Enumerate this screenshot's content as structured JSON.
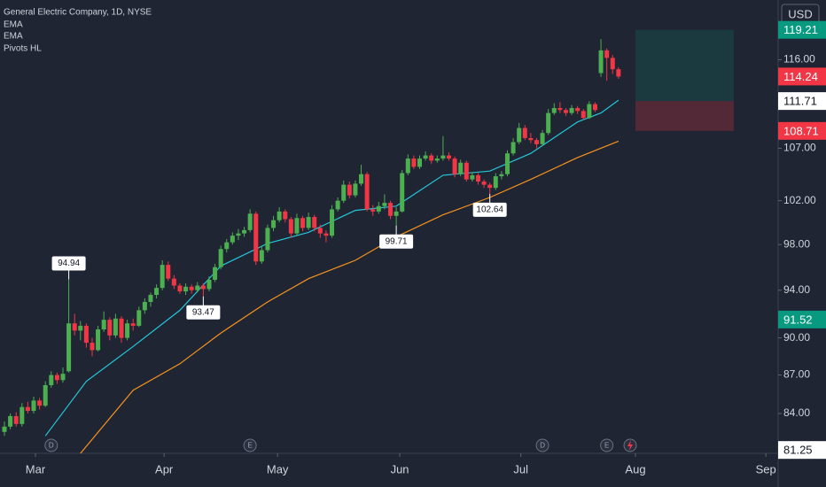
{
  "chart_data": {
    "type": "candlestick",
    "title": "General Electric Company, 1D, NYSE",
    "currency": "USD",
    "log_scale": true,
    "grid": false,
    "up_color": "#4caf50",
    "down_color": "#f23645",
    "ylim": [
      81.0,
      122.5
    ],
    "yticks": [
      {
        "value": 116,
        "label": "116.00"
      },
      {
        "value": 107,
        "label": "107.00"
      },
      {
        "value": 102,
        "label": "102.00"
      },
      {
        "value": 98,
        "label": "98.00"
      },
      {
        "value": 94,
        "label": "94.00"
      },
      {
        "value": 90,
        "label": "90.00"
      },
      {
        "value": 87,
        "label": "87.00"
      },
      {
        "value": 84,
        "label": "84.00"
      }
    ],
    "xlim": [
      -0.76,
      132.3
    ],
    "xticks": [
      {
        "value": 5.3,
        "label": "Mar"
      },
      {
        "value": 27.3,
        "label": "Apr"
      },
      {
        "value": 46.7,
        "label": "May"
      },
      {
        "value": 67.6,
        "label": "Jun"
      },
      {
        "value": 88.3,
        "label": "Jul"
      },
      {
        "value": 107.9,
        "label": "Aug"
      },
      {
        "value": 130.2,
        "label": "Sep"
      }
    ],
    "ohlc": [
      [
        82.6,
        83.4,
        82.3,
        83.0
      ],
      [
        83.0,
        84.0,
        82.8,
        83.8
      ],
      [
        83.8,
        84.1,
        83.0,
        83.2
      ],
      [
        83.2,
        84.8,
        83.0,
        84.5
      ],
      [
        84.5,
        84.9,
        84.0,
        84.2
      ],
      [
        84.2,
        85.3,
        84.0,
        85.0
      ],
      [
        85.0,
        85.2,
        84.3,
        84.6
      ],
      [
        84.6,
        86.5,
        84.5,
        86.2
      ],
      [
        86.2,
        87.3,
        86.0,
        87.0
      ],
      [
        87.0,
        87.2,
        86.3,
        86.6
      ],
      [
        86.6,
        87.6,
        86.4,
        87.1
      ],
      [
        87.3,
        94.94,
        87.2,
        91.2
      ],
      [
        91.2,
        92.0,
        90.2,
        90.6
      ],
      [
        90.6,
        91.4,
        89.8,
        91.0
      ],
      [
        91.0,
        91.2,
        89.2,
        89.6
      ],
      [
        89.6,
        90.0,
        88.5,
        89.0
      ],
      [
        89.0,
        91.0,
        88.9,
        90.7
      ],
      [
        90.7,
        92.2,
        90.5,
        91.5
      ],
      [
        91.5,
        91.7,
        89.8,
        90.2
      ],
      [
        90.2,
        92.0,
        90.0,
        91.6
      ],
      [
        91.6,
        91.8,
        89.6,
        90.0
      ],
      [
        90.0,
        91.5,
        89.8,
        91.2
      ],
      [
        91.2,
        91.6,
        90.6,
        91.0
      ],
      [
        91.0,
        92.6,
        90.9,
        92.3
      ],
      [
        92.3,
        93.3,
        92.0,
        93.0
      ],
      [
        93.0,
        93.8,
        92.6,
        93.6
      ],
      [
        93.6,
        94.5,
        93.3,
        94.2
      ],
      [
        94.2,
        96.6,
        94.0,
        96.2
      ],
      [
        96.2,
        96.5,
        94.8,
        95.0
      ],
      [
        95.0,
        95.3,
        94.1,
        94.4
      ],
      [
        94.4,
        94.6,
        93.7,
        93.9
      ],
      [
        93.9,
        94.6,
        93.6,
        94.3
      ],
      [
        94.3,
        94.5,
        93.7,
        94.0
      ],
      [
        94.0,
        94.7,
        93.8,
        94.4
      ],
      [
        94.4,
        94.6,
        93.47,
        94.1
      ],
      [
        94.1,
        95.2,
        93.9,
        94.9
      ],
      [
        94.9,
        96.3,
        94.7,
        96.0
      ],
      [
        96.0,
        97.9,
        95.8,
        97.6
      ],
      [
        97.6,
        98.5,
        97.3,
        98.2
      ],
      [
        98.2,
        99.1,
        98.0,
        98.8
      ],
      [
        98.8,
        99.4,
        98.4,
        99.0
      ],
      [
        99.0,
        99.6,
        98.7,
        99.3
      ],
      [
        99.3,
        101.2,
        99.1,
        100.8
      ],
      [
        100.8,
        101.0,
        96.2,
        96.5
      ],
      [
        96.5,
        97.9,
        96.3,
        97.5
      ],
      [
        97.5,
        99.8,
        97.3,
        99.5
      ],
      [
        99.5,
        100.6,
        99.2,
        100.2
      ],
      [
        100.2,
        101.4,
        100.0,
        101.0
      ],
      [
        101.0,
        101.2,
        100.0,
        100.3
      ],
      [
        100.3,
        100.5,
        98.6,
        99.0
      ],
      [
        99.0,
        100.8,
        98.8,
        100.4
      ],
      [
        100.4,
        100.6,
        99.2,
        99.5
      ],
      [
        99.5,
        100.9,
        99.3,
        100.5
      ],
      [
        100.5,
        100.7,
        99.2,
        99.5
      ],
      [
        99.5,
        99.8,
        98.6,
        99.0
      ],
      [
        99.0,
        99.3,
        98.2,
        98.8
      ],
      [
        98.8,
        101.6,
        98.6,
        101.2
      ],
      [
        101.2,
        102.3,
        101.0,
        102.0
      ],
      [
        102.0,
        103.9,
        101.8,
        103.5
      ],
      [
        103.5,
        103.8,
        102.2,
        102.5
      ],
      [
        102.5,
        103.9,
        102.3,
        103.6
      ],
      [
        103.6,
        105.4,
        103.4,
        104.5
      ],
      [
        104.5,
        104.7,
        101.0,
        101.2
      ],
      [
        101.2,
        101.6,
        100.6,
        101.0
      ],
      [
        101.0,
        101.9,
        100.8,
        101.5
      ],
      [
        101.5,
        102.6,
        101.2,
        101.8
      ],
      [
        101.8,
        102.0,
        100.3,
        100.6
      ],
      [
        100.6,
        101.4,
        99.71,
        101.0
      ],
      [
        101.0,
        104.9,
        100.9,
        104.6
      ],
      [
        104.6,
        106.4,
        104.4,
        106.0
      ],
      [
        106.0,
        106.3,
        105.0,
        105.2
      ],
      [
        105.2,
        106.3,
        105.0,
        106.0
      ],
      [
        106.0,
        106.7,
        105.8,
        106.3
      ],
      [
        106.3,
        106.5,
        105.5,
        105.8
      ],
      [
        105.8,
        106.3,
        105.6,
        106.0
      ],
      [
        106.0,
        108.2,
        105.8,
        106.3
      ],
      [
        106.3,
        106.6,
        105.8,
        106.0
      ],
      [
        106.0,
        106.2,
        104.2,
        104.5
      ],
      [
        104.5,
        105.9,
        104.3,
        105.6
      ],
      [
        105.6,
        105.8,
        103.8,
        104.0
      ],
      [
        104.0,
        104.7,
        103.8,
        104.4
      ],
      [
        104.4,
        104.6,
        103.5,
        103.8
      ],
      [
        103.8,
        104.0,
        103.2,
        103.5
      ],
      [
        103.5,
        103.7,
        102.64,
        103.2
      ],
      [
        103.2,
        104.6,
        103.0,
        104.3
      ],
      [
        104.3,
        104.8,
        104.0,
        104.5
      ],
      [
        104.5,
        106.8,
        104.3,
        106.5
      ],
      [
        106.5,
        108.0,
        106.3,
        107.6
      ],
      [
        107.6,
        109.5,
        107.4,
        109.0
      ],
      [
        109.0,
        109.3,
        107.8,
        108.0
      ],
      [
        108.0,
        108.5,
        107.5,
        107.8
      ],
      [
        107.8,
        108.0,
        107.0,
        107.4
      ],
      [
        107.4,
        108.8,
        107.2,
        108.5
      ],
      [
        108.5,
        110.9,
        108.3,
        110.5
      ],
      [
        110.5,
        111.5,
        110.3,
        111.0
      ],
      [
        111.0,
        111.6,
        110.5,
        110.8
      ],
      [
        110.8,
        111.0,
        110.2,
        110.5
      ],
      [
        110.5,
        111.3,
        110.3,
        111.0
      ],
      [
        111.0,
        111.2,
        110.4,
        110.7
      ],
      [
        110.7,
        110.9,
        109.8,
        110.0
      ],
      [
        110.0,
        111.7,
        109.9,
        111.4
      ],
      [
        111.4,
        111.6,
        110.6,
        110.8
      ],
      [
        114.6,
        118.2,
        114.2,
        117.0
      ],
      [
        117.0,
        117.2,
        113.8,
        116.2
      ],
      [
        116.2,
        116.5,
        114.5,
        115.0
      ],
      [
        115.0,
        115.2,
        114.0,
        114.24
      ]
    ],
    "series": [
      {
        "name": "EMA",
        "color": "#26c6da",
        "x": [
          7,
          14,
          22,
          30,
          37,
          45,
          52,
          60,
          67,
          75,
          83,
          90,
          98,
          102,
          105
        ],
        "values": [
          82.3,
          86.5,
          89.3,
          92.3,
          96.1,
          98.1,
          99.1,
          101.1,
          101.5,
          104.4,
          104.8,
          106.5,
          109.6,
          110.5,
          111.8
        ]
      },
      {
        "name": "EMA",
        "color": "#f7931e",
        "x": [
          13,
          22,
          30,
          37,
          45,
          52,
          60,
          67,
          75,
          83,
          90,
          98,
          105
        ],
        "values": [
          81.0,
          85.8,
          87.9,
          90.4,
          93.0,
          95.0,
          96.6,
          98.7,
          100.7,
          102.3,
          104.0,
          106.1,
          107.7
        ]
      }
    ],
    "pivots": {
      "name": "Pivots HL",
      "points": [
        {
          "x": 11,
          "value": 94.94,
          "side": "high"
        },
        {
          "x": 34,
          "value": 93.47,
          "side": "low"
        },
        {
          "x": 67,
          "value": 99.71,
          "side": "low"
        },
        {
          "x": 83,
          "value": 102.64,
          "side": "low"
        }
      ]
    },
    "events": [
      {
        "x": 8,
        "label": "D"
      },
      {
        "x": 42,
        "label": "E"
      },
      {
        "x": 92,
        "label": "D"
      },
      {
        "x": 103,
        "label": "E"
      }
    ],
    "position": {
      "x": [
        107.9,
        124.7
      ],
      "target": 119.21,
      "entry": 111.71,
      "stop": 108.71,
      "target_color": "#089981",
      "entry_color": "#ffffff",
      "stop_color": "#f23645"
    },
    "price_badges": [
      {
        "value": 114.24,
        "color": "#f23645"
      },
      {
        "value": 91.52,
        "color": "#089981"
      },
      {
        "value": 81.25,
        "color": "#ffffff"
      }
    ]
  }
}
